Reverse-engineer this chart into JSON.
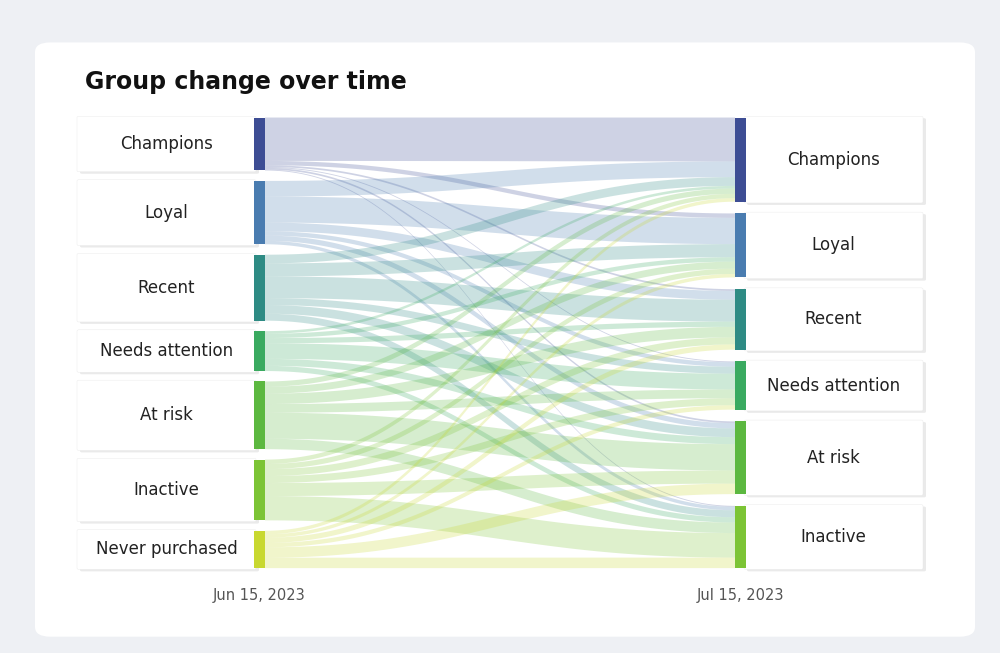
{
  "title": "Group change over time",
  "date_left": "Jun 15, 2023",
  "date_right": "Jul 15, 2023",
  "groups_left": [
    "Champions",
    "Loyal",
    "Recent",
    "Needs attention",
    "At risk",
    "Inactive",
    "Never purchased"
  ],
  "groups_right": [
    "Champions",
    "Loyal",
    "Recent",
    "Needs attention",
    "At risk",
    "Inactive"
  ],
  "group_colors": [
    "#3d4d94",
    "#4a7cb0",
    "#2e8b84",
    "#3aaa60",
    "#5cb840",
    "#7cc435",
    "#c8d830"
  ],
  "background_color": "#eef0f4",
  "card_color": "#ffffff",
  "flows": [
    [
      0.05,
      0.005,
      0.002,
      0.001,
      0.002,
      0.001
    ],
    [
      0.018,
      0.03,
      0.01,
      0.005,
      0.006,
      0.004
    ],
    [
      0.01,
      0.015,
      0.025,
      0.008,
      0.01,
      0.008
    ],
    [
      0.003,
      0.005,
      0.006,
      0.018,
      0.008,
      0.006
    ],
    [
      0.006,
      0.008,
      0.012,
      0.01,
      0.03,
      0.012
    ],
    [
      0.005,
      0.006,
      0.008,
      0.008,
      0.015,
      0.028
    ],
    [
      0.004,
      0.004,
      0.006,
      0.005,
      0.012,
      0.012
    ]
  ],
  "title_fontsize": 17,
  "label_fontsize": 12,
  "date_fontsize": 10.5
}
